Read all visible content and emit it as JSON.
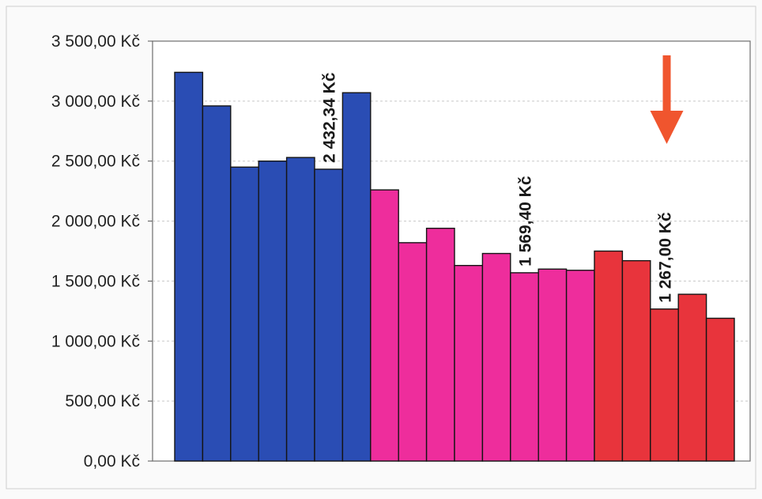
{
  "chart_data": {
    "type": "bar",
    "title": "",
    "xlabel": "",
    "ylabel": "",
    "ylim": [
      0,
      3500
    ],
    "y_ticks": [
      0,
      500,
      1000,
      1500,
      2000,
      2500,
      3000,
      3500
    ],
    "y_tick_labels": [
      "0,00 Kč",
      "500,00 Kč",
      "1 000,00 Kč",
      "1 500,00 Kč",
      "2 000,00 Kč",
      "2 500,00 Kč",
      "3 000,00 Kč",
      "3 500,00 Kč"
    ],
    "grid": true,
    "legend": "none",
    "series": [
      {
        "color": "#2a4db4",
        "values": [
          3240,
          2960,
          2450,
          2500,
          2530,
          2432.34,
          3070
        ]
      },
      {
        "color": "#ee2d9c",
        "values": [
          2260,
          1820,
          1940,
          1630,
          1730,
          1569.4,
          1600,
          1590
        ]
      },
      {
        "color": "#e8343c",
        "values": [
          1750,
          1670,
          1267.0,
          1390,
          1190
        ]
      }
    ],
    "annotations": [
      {
        "text": "2 432,34 Kč",
        "series": 0,
        "index": 5
      },
      {
        "text": "1 569,40 Kč",
        "series": 1,
        "index": 5
      },
      {
        "text": "1 267,00 Kč",
        "series": 2,
        "index": 2
      }
    ],
    "marker": {
      "type": "arrow-down",
      "color": "#f0552e",
      "series": 2,
      "index": 2
    }
  }
}
